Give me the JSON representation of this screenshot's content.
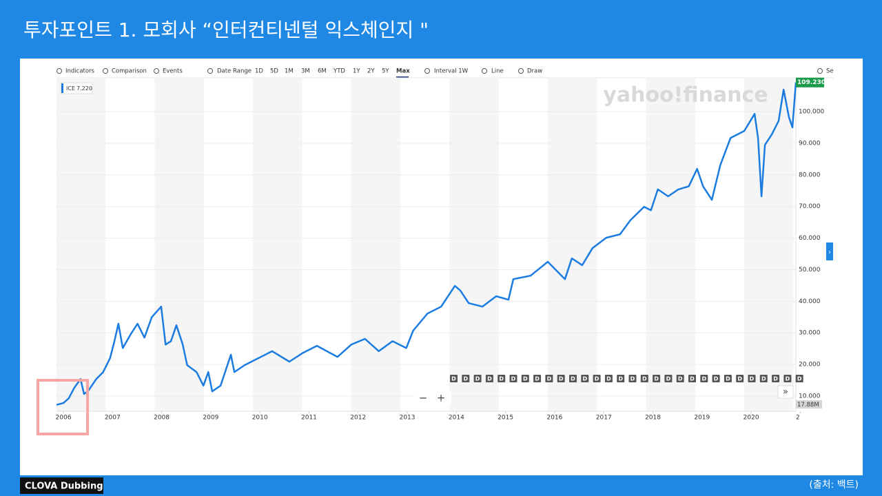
{
  "header": {
    "title": "투자포인트 1. 모회사 “인터컨티넨털 익스체인지 \"",
    "source": "(출처: 백트)",
    "badge": "CLOVA Dubbing"
  },
  "toolbar": [
    "Indicators",
    "Comparison",
    "Events",
    "Date Range",
    "1D",
    "5D",
    "1M",
    "3M",
    "6M",
    "YTD",
    "1Y",
    "2Y",
    "5Y",
    "Max",
    "Interval 1W",
    "Line",
    "Draw",
    "Se"
  ],
  "chart_data": {
    "type": "line",
    "watermark": "yahoo!finance",
    "series": [
      {
        "name": "ICE",
        "color": "#1a7be0",
        "first_value_label": "7.220",
        "last_value_label": "109.230",
        "x": [
          2005.86,
          2006.0,
          2006.11,
          2006.22,
          2006.35,
          2006.42,
          2006.5,
          2006.67,
          2006.81,
          2006.95,
          2007.04,
          2007.12,
          2007.21,
          2007.37,
          2007.51,
          2007.65,
          2007.8,
          2007.99,
          2008.08,
          2008.19,
          2008.3,
          2008.43,
          2008.52,
          2008.71,
          2008.85,
          2008.95,
          2009.03,
          2009.2,
          2009.41,
          2009.48,
          2009.69,
          2009.97,
          2010.25,
          2010.6,
          2010.88,
          2011.16,
          2011.58,
          2011.86,
          2012.14,
          2012.42,
          2012.7,
          2012.98,
          2013.12,
          2013.41,
          2013.69,
          2013.97,
          2014.08,
          2014.25,
          2014.53,
          2014.81,
          2015.06,
          2015.16,
          2015.51,
          2015.86,
          2016.07,
          2016.21,
          2016.35,
          2016.56,
          2016.77,
          2017.05,
          2017.33,
          2017.54,
          2017.82,
          2017.96,
          2018.1,
          2018.31,
          2018.52,
          2018.73,
          2018.9,
          2019.02,
          2019.2,
          2019.37,
          2019.58,
          2019.86,
          2020.07,
          2020.14,
          2020.21,
          2020.28,
          2020.42,
          2020.56,
          2020.66,
          2020.77,
          2020.84,
          2020.91
        ],
        "values": [
          7.22,
          7.8,
          9.3,
          12.6,
          15.4,
          10.7,
          11.5,
          15.4,
          17.6,
          22,
          27.4,
          32.9,
          25.2,
          29.6,
          32.9,
          28.5,
          35,
          38.3,
          26.3,
          27.4,
          32.4,
          26.3,
          19.8,
          17.6,
          13.3,
          17.6,
          11.5,
          13.3,
          23.1,
          17.6,
          19.8,
          22,
          24.2,
          20.9,
          23.7,
          25.9,
          22.4,
          26.3,
          28.1,
          24.2,
          27.4,
          25.2,
          30.7,
          36.1,
          38.3,
          44.9,
          43.4,
          39.4,
          38.3,
          41.6,
          40.5,
          47,
          48.1,
          52.5,
          49.2,
          47,
          53.6,
          51.4,
          56.8,
          60.1,
          61.2,
          65.6,
          69.9,
          68.8,
          75.4,
          73.2,
          75.4,
          76.4,
          81.9,
          76.4,
          72.1,
          83,
          91.7,
          93.9,
          99.3,
          91.7,
          73.2,
          89.5,
          92.8,
          97.1,
          107,
          98.2,
          95,
          109.23
        ]
      }
    ],
    "xlim": [
      2005.86,
      2020.91
    ],
    "xticks": [
      2006,
      2007,
      2008,
      2009,
      2010,
      2011,
      2012,
      2013,
      2014,
      2015,
      2016,
      2017,
      2018,
      2019,
      2020,
      {
        "value": 2021,
        "label": "2"
      }
    ],
    "ylim": [
      5.2,
      110.7
    ],
    "yticks": [
      {
        "value": 10,
        "label": "10.000"
      },
      {
        "value": 20,
        "label": "20.000"
      },
      {
        "value": 30,
        "label": "30.000"
      },
      {
        "value": 40,
        "label": "40.000"
      },
      {
        "value": 50,
        "label": "50.000"
      },
      {
        "value": 60,
        "label": "60.000"
      },
      {
        "value": 70,
        "label": "70.000"
      },
      {
        "value": 80,
        "label": "80.000"
      },
      {
        "value": 90,
        "label": "90.000"
      },
      {
        "value": 100,
        "label": "100.000"
      }
    ],
    "grid": true,
    "volume_label": "17.88M",
    "dividend_markers": [
      "D",
      "D",
      "D",
      "D",
      "D",
      "D",
      "D",
      "D",
      "D",
      "D",
      "D",
      "D",
      "D",
      "D",
      "D",
      "D",
      "D",
      "D",
      "D",
      "D",
      "D",
      "D",
      "D",
      "D",
      "D",
      "D",
      "D",
      "D",
      "D",
      "D"
    ]
  }
}
